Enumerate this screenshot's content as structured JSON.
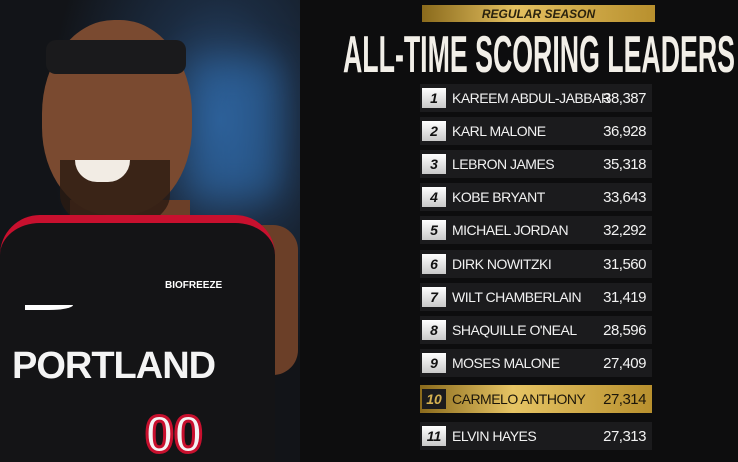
{
  "header": {
    "banner": "REGULAR SEASON",
    "title": "ALL-TIME SCORING LEADERS"
  },
  "photo": {
    "jersey_text": "PORTLAND",
    "jersey_number": "00",
    "sponsor": "BIOFREEZE"
  },
  "colors": {
    "gold": "#d4b050",
    "highlight_red": "#c8102e"
  },
  "leaders": [
    {
      "rank": "1",
      "name": "KAREEM ABDUL-JABBAR",
      "points": "38,387"
    },
    {
      "rank": "2",
      "name": "KARL MALONE",
      "points": "36,928"
    },
    {
      "rank": "3",
      "name": "LEBRON JAMES",
      "points": "35,318"
    },
    {
      "rank": "4",
      "name": "KOBE BRYANT",
      "points": "33,643"
    },
    {
      "rank": "5",
      "name": "MICHAEL JORDAN",
      "points": "32,292"
    },
    {
      "rank": "6",
      "name": "DIRK NOWITZKI",
      "points": "31,560"
    },
    {
      "rank": "7",
      "name": "WILT CHAMBERLAIN",
      "points": "31,419"
    },
    {
      "rank": "8",
      "name": "SHAQUILLE O'NEAL",
      "points": "28,596"
    },
    {
      "rank": "9",
      "name": "MOSES MALONE",
      "points": "27,409"
    },
    {
      "rank": "10",
      "name": "CARMELO ANTHONY",
      "points": "27,314",
      "highlighted": true
    },
    {
      "rank": "11",
      "name": "ELVIN HAYES",
      "points": "27,313"
    }
  ]
}
